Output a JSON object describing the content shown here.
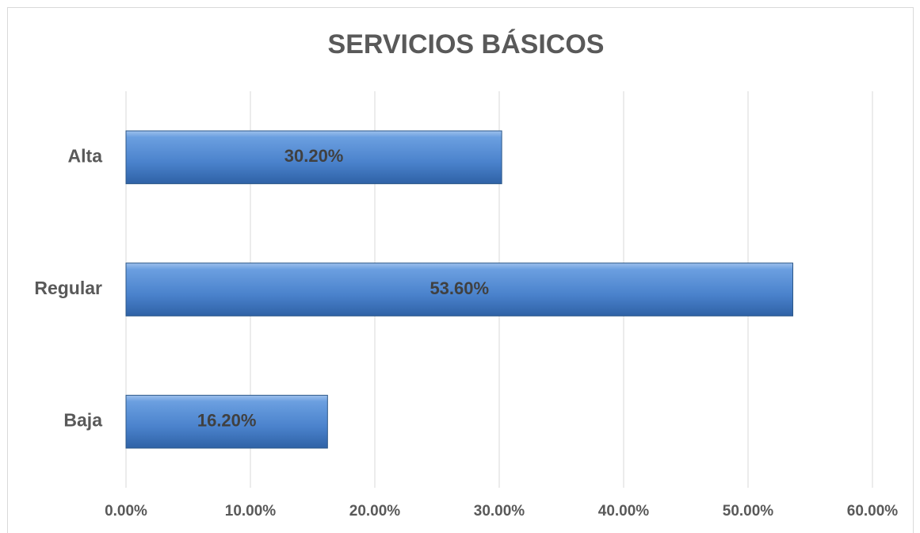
{
  "chart_data": {
    "type": "hbar",
    "title": "SERVICIOS BÁSICOS",
    "categories": [
      "Alta",
      "Regular",
      "Baja"
    ],
    "values": [
      30.2,
      53.6,
      16.2
    ],
    "value_labels": [
      "30.20%",
      "53.60%",
      "16.20%"
    ],
    "color": "#4f86cc",
    "xlim": [
      0,
      60
    ],
    "xticks": [
      {
        "value": 0,
        "label": "0.00%"
      },
      {
        "value": 10,
        "label": "10.00%"
      },
      {
        "value": 20,
        "label": "20.00%"
      },
      {
        "value": 30,
        "label": "30.00%"
      },
      {
        "value": 40,
        "label": "40.00%"
      },
      {
        "value": 50,
        "label": "50.00%"
      },
      {
        "value": 60,
        "label": "60.00%"
      }
    ],
    "grid": true
  }
}
